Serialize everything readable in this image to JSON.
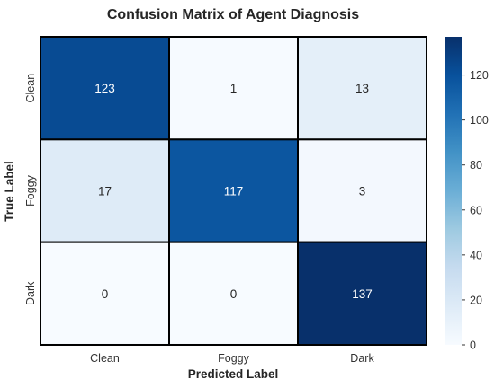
{
  "chart_data": {
    "type": "heatmap",
    "title": "Confusion Matrix of Agent Diagnosis",
    "xlabel": "Predicted Label",
    "ylabel": "True Label",
    "x_categories": [
      "Clean",
      "Foggy",
      "Dark"
    ],
    "y_categories": [
      "Clean",
      "Foggy",
      "Dark"
    ],
    "values": [
      [
        123,
        1,
        13
      ],
      [
        17,
        117,
        3
      ],
      [
        0,
        0,
        137
      ]
    ],
    "colorbar": {
      "range": [
        0,
        137
      ],
      "ticks": [
        0,
        20,
        40,
        60,
        80,
        100,
        120
      ],
      "colormap": "Blues"
    }
  }
}
